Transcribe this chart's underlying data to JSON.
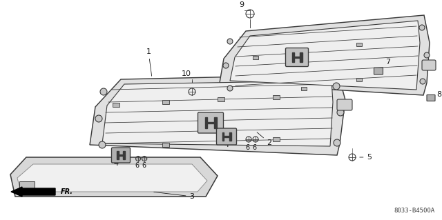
{
  "bg_color": "#ffffff",
  "line_color": "#3a3a3a",
  "title_code": "8033-B4500A",
  "figsize": [
    6.4,
    3.19
  ],
  "dpi": 100,
  "xlim": [
    0,
    640
  ],
  "ylim": [
    0,
    319
  ]
}
